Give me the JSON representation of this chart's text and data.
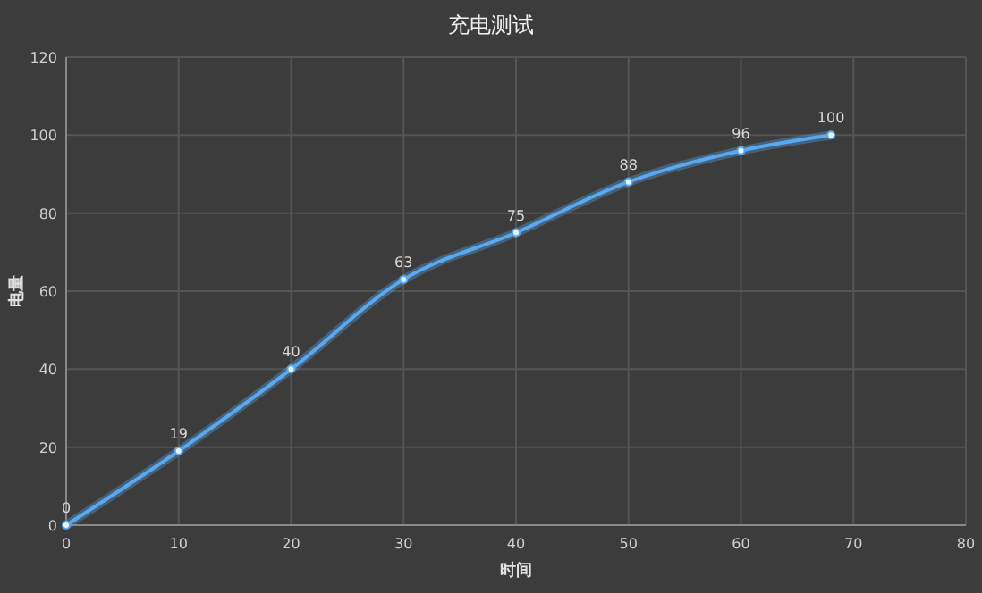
{
  "chart_data": {
    "type": "line",
    "title": "充电测试",
    "xlabel": "时间",
    "ylabel": "电量",
    "x": [
      0,
      10,
      20,
      30,
      40,
      50,
      60,
      68
    ],
    "series": [
      {
        "color": "#5aa9f0",
        "values": [
          0,
          19,
          40,
          63,
          75,
          88,
          96,
          100
        ]
      }
    ],
    "xlim": [
      0,
      80
    ],
    "xticks": [
      0,
      10,
      20,
      30,
      40,
      50,
      60,
      70,
      80
    ],
    "ylim": [
      0,
      120
    ],
    "yticks": [
      0,
      20,
      40,
      60,
      80,
      100,
      120
    ],
    "grid": true,
    "marker": "circle",
    "line_style": "solid",
    "data_labels": true
  }
}
